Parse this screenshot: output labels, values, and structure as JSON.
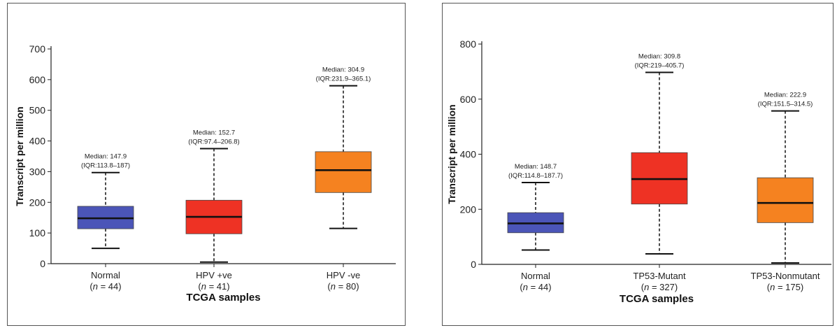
{
  "chart_data": [
    {
      "type": "box",
      "ylabel": "Transcript per million",
      "xlabel": "TCGA samples",
      "ylim": [
        0,
        700
      ],
      "yticks": [
        0,
        100,
        200,
        300,
        400,
        500,
        600,
        700
      ],
      "grid": false,
      "boxes": [
        {
          "category": "Normal",
          "n_prefix": "(",
          "n_symbol": "n",
          "n_suffix": " = 44)",
          "color": "#4b55b8",
          "min": 50,
          "q1": 113.8,
          "median": 147.9,
          "q3": 187,
          "max": 297,
          "median_label": "Median: 147.9",
          "iqr_label": "(IQR:113.8–187)"
        },
        {
          "category": "HPV +ve",
          "n_prefix": "(",
          "n_symbol": "n",
          "n_suffix": " = 41)",
          "color": "#ee3224",
          "min": 5,
          "q1": 97.4,
          "median": 152.7,
          "q3": 206.8,
          "max": 375,
          "median_label": "Median: 152.7",
          "iqr_label": "(IQR:97.4–206.8)"
        },
        {
          "category": "HPV -ve",
          "n_prefix": "(",
          "n_symbol": "n",
          "n_suffix": " = 80)",
          "color": "#f58220",
          "min": 115,
          "q1": 231.9,
          "median": 304.9,
          "q3": 365.1,
          "max": 580,
          "median_label": "Median: 304.9",
          "iqr_label": "(IQR:231.9–365.1)"
        }
      ]
    },
    {
      "type": "box",
      "ylabel": "Transcript per million",
      "xlabel": "TCGA samples",
      "ylim": [
        0,
        800
      ],
      "yticks": [
        0,
        200,
        400,
        600,
        800
      ],
      "grid": false,
      "boxes": [
        {
          "category": "Normal",
          "n_prefix": "(",
          "n_symbol": "n",
          "n_suffix": " = 44)",
          "color": "#4b55b8",
          "min": 52,
          "q1": 114.8,
          "median": 148.7,
          "q3": 187.7,
          "max": 297,
          "median_label": "Median: 148.7",
          "iqr_label": "(IQR:114.8–187.7)"
        },
        {
          "category": "TP53-Mutant",
          "n_prefix": "(",
          "n_symbol": "n",
          "n_suffix": " = 327)",
          "color": "#ee3224",
          "min": 38,
          "q1": 219,
          "median": 309.8,
          "q3": 405.7,
          "max": 697,
          "median_label": "Median: 309.8",
          "iqr_label": "(IQR:219–405.7)"
        },
        {
          "category": "TP53-Nonmutant",
          "n_prefix": "(",
          "n_symbol": "n",
          "n_suffix": " = 175)",
          "color": "#f58220",
          "min": 5,
          "q1": 151.5,
          "median": 222.9,
          "q3": 314.5,
          "max": 557,
          "median_label": "Median: 222.9",
          "iqr_label": "(IQR:151.5–314.5)"
        }
      ]
    }
  ]
}
